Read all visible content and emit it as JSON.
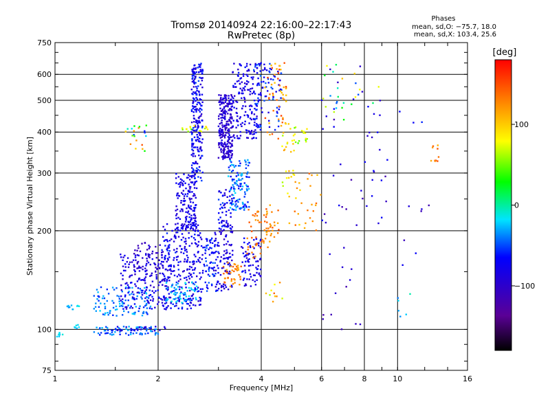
{
  "header": {
    "title": "Tromsø 20140924 22:16:00–22:17:43",
    "subtitle": "RwPretec (8p)"
  },
  "phase_info": {
    "heading": "Phases",
    "line_o": "mean, sd,O: −75.7, 18.0",
    "line_x": "mean, sd,X: 103.4, 25.6"
  },
  "colorbar": {
    "label": "[deg]",
    "range": [
      -180,
      180
    ],
    "ticks": [
      {
        "value": 100,
        "label": "100"
      },
      {
        "value": 0,
        "label": "0"
      },
      {
        "value": -100,
        "label": "−100"
      }
    ],
    "stops": [
      "#000000",
      "#5a0096",
      "#0000ff",
      "#00e4ff",
      "#00ff00",
      "#ffff00",
      "#ff8000",
      "#ff0000"
    ]
  },
  "chart_data": {
    "type": "scatter",
    "title": "Tromsø 20140924 22:16:00–22:17:43",
    "subtitle": "RwPretec (8p)",
    "xlabel": "Frequency [MHz]",
    "ylabel": "Stationary phase Virtual Height [km]",
    "xscale": "log",
    "yscale": "log",
    "xlim": [
      1,
      16
    ],
    "ylim": [
      75,
      750
    ],
    "xticks": [
      1,
      2,
      4,
      6,
      8,
      10,
      16
    ],
    "yticks": [
      75,
      100,
      200,
      300,
      400,
      500,
      600,
      750
    ],
    "xgrid": [
      2,
      4,
      6,
      8,
      10
    ],
    "ygrid": [
      100,
      200,
      300,
      400,
      500,
      600
    ],
    "color_by": "phase [deg]",
    "clusters": [
      {
        "xr": [
          1.0,
          1.06
        ],
        "yr": [
          95,
          98
        ],
        "n": 8,
        "ph": [
          -40,
          -10
        ],
        "seed": 1
      },
      {
        "xr": [
          1.05,
          1.18
        ],
        "yr": [
          115,
          120
        ],
        "n": 10,
        "ph": [
          -40,
          -10
        ],
        "seed": 2
      },
      {
        "xr": [
          1.12,
          1.2
        ],
        "yr": [
          100,
          104
        ],
        "n": 6,
        "ph": [
          -30,
          -10
        ],
        "seed": 3
      },
      {
        "xr": [
          1.3,
          2.0
        ],
        "yr": [
          96,
          102
        ],
        "n": 70,
        "ph": [
          -60,
          -25
        ],
        "seed": 4
      },
      {
        "xr": [
          1.5,
          2.1
        ],
        "yr": [
          99,
          102
        ],
        "n": 25,
        "ph": [
          -100,
          -80
        ],
        "seed": 5
      },
      {
        "xr": [
          1.3,
          1.9
        ],
        "yr": [
          110,
          135
        ],
        "n": 110,
        "ph": [
          -60,
          -20
        ],
        "seed": 6
      },
      {
        "xr": [
          1.55,
          2.2
        ],
        "yr": [
          115,
          170
        ],
        "n": 180,
        "ph": [
          -100,
          -60
        ],
        "seed": 7
      },
      {
        "xr": [
          1.7,
          2.1
        ],
        "yr": [
          140,
          185
        ],
        "n": 60,
        "ph": [
          -115,
          -85
        ],
        "seed": 8
      },
      {
        "xr": [
          2.05,
          2.7
        ],
        "yr": [
          115,
          210
        ],
        "n": 260,
        "ph": [
          -100,
          -55
        ],
        "seed": 9
      },
      {
        "xr": [
          2.1,
          2.6
        ],
        "yr": [
          120,
          140
        ],
        "n": 60,
        "ph": [
          -40,
          -10
        ],
        "seed": 10
      },
      {
        "xr": [
          2.25,
          2.6
        ],
        "yr": [
          200,
          300
        ],
        "n": 150,
        "ph": [
          -100,
          -60
        ],
        "seed": 11
      },
      {
        "xr": [
          2.5,
          2.7
        ],
        "yr": [
          280,
          650
        ],
        "n": 250,
        "ph": [
          -100,
          -50
        ],
        "seed": 12
      },
      {
        "xr": [
          2.7,
          3.0
        ],
        "yr": [
          130,
          190
        ],
        "n": 70,
        "ph": [
          -80,
          -40
        ],
        "seed": 13
      },
      {
        "xr": [
          2.9,
          3.3
        ],
        "yr": [
          130,
          200
        ],
        "n": 90,
        "ph": [
          -110,
          -70
        ],
        "seed": 14
      },
      {
        "xr": [
          3.0,
          3.3
        ],
        "yr": [
          200,
          270
        ],
        "n": 60,
        "ph": [
          -100,
          -50
        ],
        "seed": 15
      },
      {
        "xr": [
          3.0,
          3.3
        ],
        "yr": [
          330,
          520
        ],
        "n": 250,
        "ph": [
          -110,
          -80
        ],
        "seed": 16
      },
      {
        "xr": [
          3.2,
          3.7
        ],
        "yr": [
          230,
          330
        ],
        "n": 120,
        "ph": [
          -70,
          -20
        ],
        "seed": 17
      },
      {
        "xr": [
          3.1,
          3.5
        ],
        "yr": [
          135,
          160
        ],
        "n": 40,
        "ph": [
          110,
          150
        ],
        "seed": 18
      },
      {
        "xr": [
          3.5,
          4.0
        ],
        "yr": [
          135,
          190
        ],
        "n": 80,
        "ph": [
          -100,
          -60
        ],
        "seed": 19
      },
      {
        "xr": [
          3.6,
          4.2
        ],
        "yr": [
          165,
          240
        ],
        "n": 40,
        "ph": [
          120,
          150
        ],
        "seed": 20
      },
      {
        "xr": [
          3.3,
          4.0
        ],
        "yr": [
          380,
          650
        ],
        "n": 180,
        "ph": [
          -100,
          -60
        ],
        "seed": 21
      },
      {
        "xr": [
          3.8,
          4.6
        ],
        "yr": [
          400,
          650
        ],
        "n": 80,
        "ph": [
          -90,
          -40
        ],
        "seed": 22
      },
      {
        "xr": [
          4.1,
          4.8
        ],
        "yr": [
          380,
          650
        ],
        "n": 50,
        "ph": [
          100,
          160
        ],
        "seed": 23
      },
      {
        "xr": [
          4.0,
          4.5
        ],
        "yr": [
          180,
          240
        ],
        "n": 30,
        "ph": [
          110,
          150
        ],
        "seed": 24
      },
      {
        "xr": [
          4.6,
          5.0
        ],
        "yr": [
          250,
          450
        ],
        "n": 25,
        "ph": [
          60,
          120
        ],
        "seed": 25
      },
      {
        "xr": [
          4.8,
          6.0
        ],
        "yr": [
          200,
          300
        ],
        "n": 30,
        "ph": [
          90,
          140
        ],
        "seed": 26
      },
      {
        "xr": [
          5.0,
          5.5
        ],
        "yr": [
          370,
          420
        ],
        "n": 15,
        "ph": [
          40,
          90
        ],
        "seed": 27
      },
      {
        "xr": [
          6.0,
          7.0
        ],
        "yr": [
          400,
          650
        ],
        "n": 25,
        "ph": [
          -120,
          120
        ],
        "seed": 28
      },
      {
        "xr": [
          6.0,
          8.0
        ],
        "yr": [
          100,
          320
        ],
        "n": 25,
        "ph": [
          -120,
          -70
        ],
        "seed": 29
      },
      {
        "xr": [
          7.0,
          9.0
        ],
        "yr": [
          450,
          650
        ],
        "n": 12,
        "ph": [
          -120,
          120
        ],
        "seed": 30
      },
      {
        "xr": [
          8.0,
          9.5
        ],
        "yr": [
          200,
          600
        ],
        "n": 20,
        "ph": [
          -120,
          -60
        ],
        "seed": 31
      },
      {
        "xr": [
          10,
          12.5
        ],
        "yr": [
          150,
          480
        ],
        "n": 10,
        "ph": [
          -120,
          -40
        ],
        "seed": 32
      },
      {
        "xr": [
          10,
          11
        ],
        "yr": [
          100,
          130
        ],
        "n": 6,
        "ph": [
          -40,
          0
        ],
        "seed": 33
      },
      {
        "xr": [
          1.6,
          1.85
        ],
        "yr": [
          350,
          420
        ],
        "n": 20,
        "ph": [
          -60,
          160
        ],
        "seed": 34
      },
      {
        "xr": [
          4.1,
          4.8
        ],
        "yr": [
          120,
          140
        ],
        "n": 10,
        "ph": [
          60,
          140
        ],
        "seed": 35
      },
      {
        "xr": [
          12.5,
          13.2
        ],
        "yr": [
          320,
          370
        ],
        "n": 10,
        "ph": [
          110,
          150
        ],
        "seed": 36
      },
      {
        "xr": [
          2.2,
          2.8
        ],
        "yr": [
          400,
          420
        ],
        "n": 15,
        "ph": [
          40,
          100
        ],
        "seed": 37
      }
    ]
  }
}
